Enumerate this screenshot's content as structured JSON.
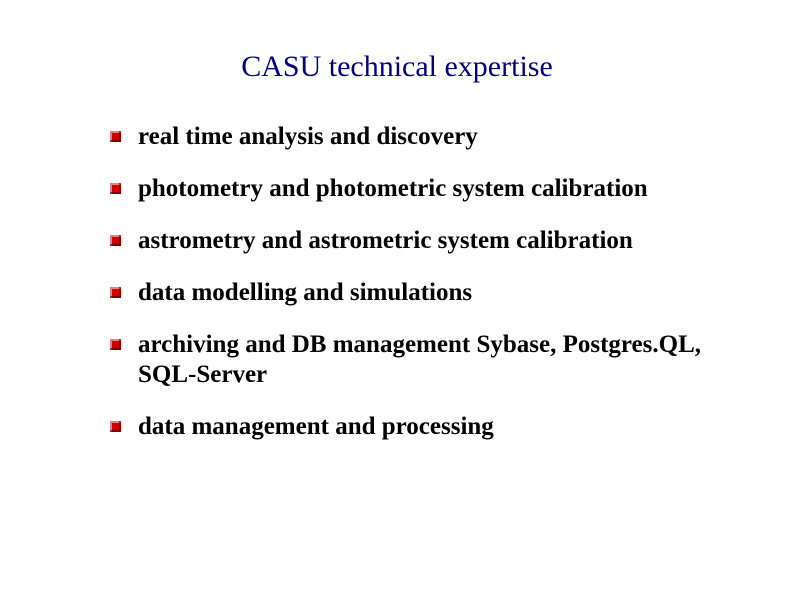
{
  "title": {
    "text": "CASU technical expertise",
    "color": "#000080",
    "font_size": 30
  },
  "bullets": {
    "icon_color": "#cc0000",
    "text_color": "#000000",
    "font_size": 25,
    "items": [
      {
        "text": "real time analysis and discovery"
      },
      {
        "text": "photometry and photometric system calibration"
      },
      {
        "text": "astrometry and astrometric system calibration"
      },
      {
        "text": "data modelling and simulations"
      },
      {
        "text": "archiving and DB management Sybase, Postgres.QL, SQL-Server"
      },
      {
        "text": "data management and processing"
      }
    ]
  },
  "background_color": "#ffffff"
}
